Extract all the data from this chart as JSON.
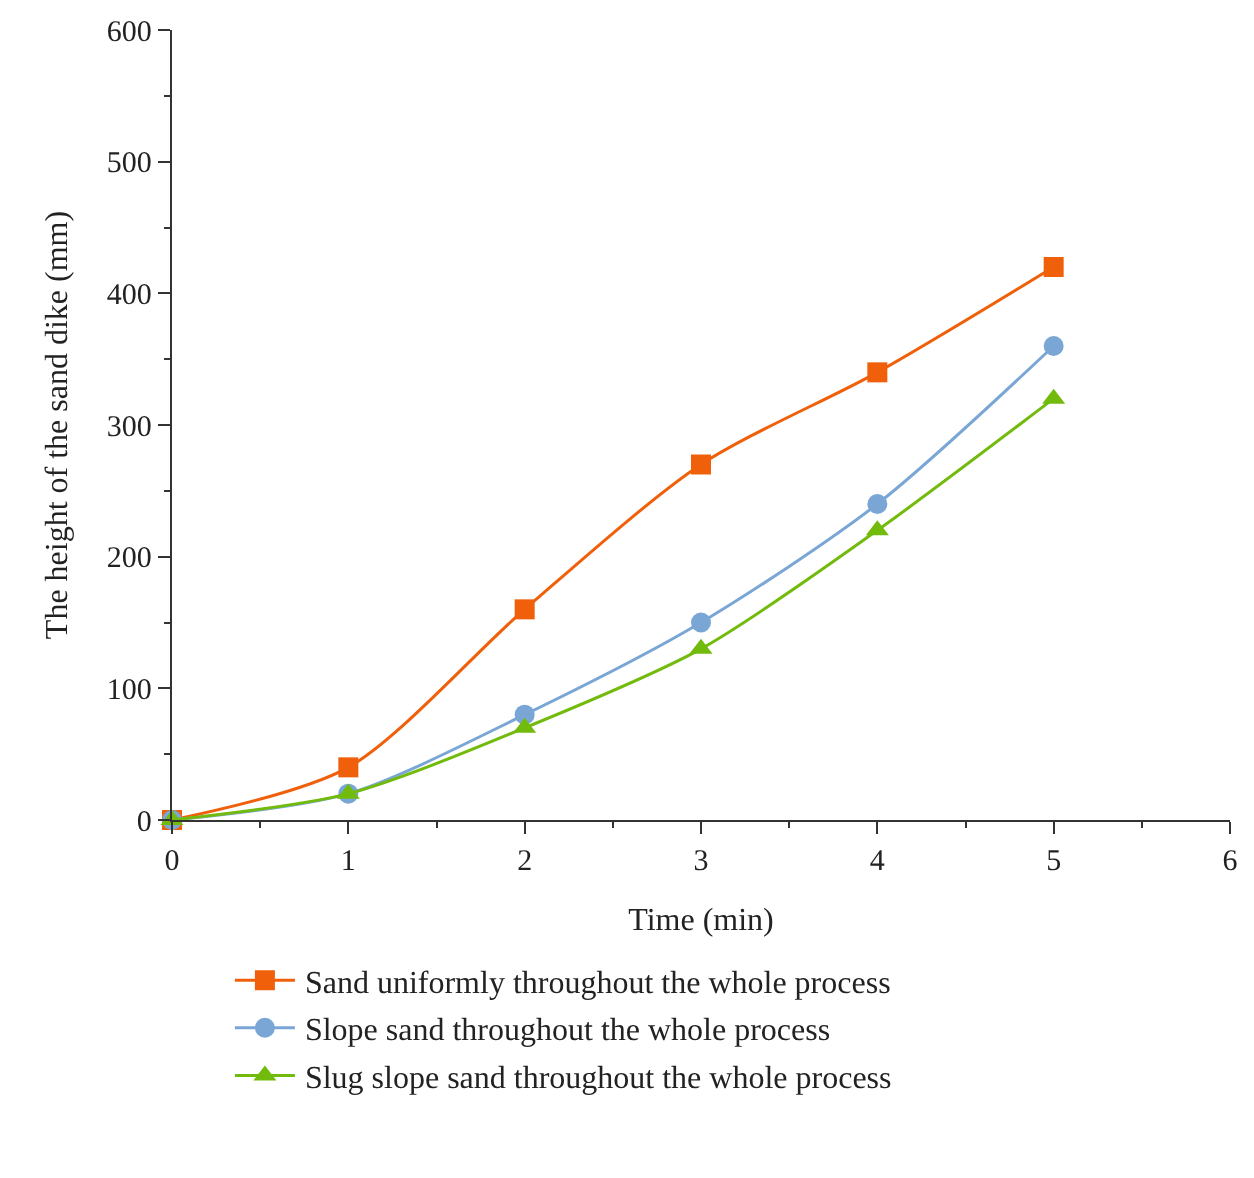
{
  "chart_data": {
    "type": "line",
    "xlabel": "Time (min)",
    "ylabel": "The height of the sand dike (mm)",
    "x": [
      0,
      1,
      2,
      3,
      4,
      5
    ],
    "series": [
      {
        "name": "Sand uniformly throughout the whole process",
        "color": "#f0600a",
        "marker": "square",
        "values": [
          0,
          40,
          160,
          270,
          340,
          420
        ]
      },
      {
        "name": "Slope sand throughout the whole process",
        "color": "#7aa6d6",
        "marker": "circle",
        "values": [
          0,
          20,
          80,
          150,
          240,
          360
        ]
      },
      {
        "name": "Slug slope sand throughout the whole process",
        "color": "#72bb0c",
        "marker": "triangle",
        "values": [
          0,
          20,
          70,
          130,
          220,
          320
        ]
      }
    ],
    "xlim": [
      0,
      6
    ],
    "xticks": [
      0,
      1,
      2,
      3,
      4,
      5,
      6
    ],
    "ylim": [
      0,
      600
    ],
    "yticks": [
      0,
      100,
      200,
      300,
      400,
      500,
      600
    ],
    "legend": "bottom",
    "line_style": "solid"
  }
}
